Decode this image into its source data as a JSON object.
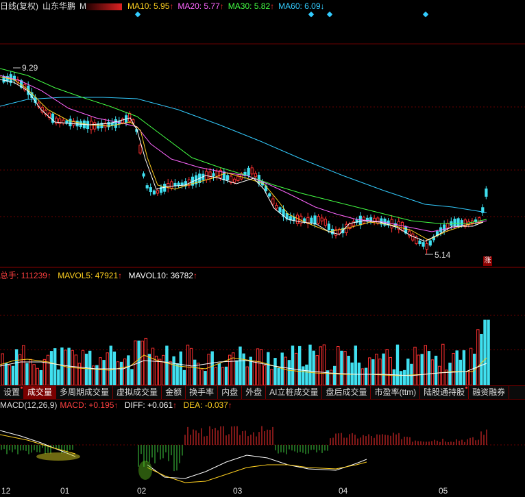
{
  "chart_header": {
    "period": "日线(复权)",
    "stock_name": "山东华鹏",
    "stock_suffix": "M",
    "ma10_label": "MA10: 5.95",
    "ma20_label": "MA20: 5.77",
    "ma30_label": "MA30: 5.82",
    "ma60_label": "MA60: 6.09"
  },
  "price_labels": {
    "high": "9.29",
    "low": "5.14"
  },
  "limit_badge": "涨",
  "volume_header": {
    "total": "总手: 111239",
    "mavol5": "MAVOL5: 47921",
    "mavol10": "MAVOL10: 36782"
  },
  "tabs": [
    {
      "label": "设置"
    },
    {
      "label": "成交量",
      "active": true
    },
    {
      "label": "多周期成交量"
    },
    {
      "label": "虚拟成交量"
    },
    {
      "label": "金额"
    },
    {
      "label": "换手率"
    },
    {
      "label": "内盘"
    },
    {
      "label": "外盘"
    },
    {
      "label": "AI立桩成交量"
    },
    {
      "label": "盘后成交量"
    },
    {
      "label": "市盈率(ttm)"
    },
    {
      "label": "陆股通持股"
    },
    {
      "label": "融资融券"
    }
  ],
  "macd_header": {
    "name": "MACD(12,26,9)",
    "macd": "MACD: +0.195",
    "diff": "DIFF: +0.061",
    "dea": "DEA: -0.037"
  },
  "x_axis": [
    "12",
    "01",
    "02",
    "03",
    "04",
    "05"
  ],
  "colors": {
    "up": "#ff3030",
    "down": "#40e0f0",
    "ma10": "#ffffff",
    "ma20": "#ff66ff",
    "ma30": "#44ff44",
    "ma60": "#3cf"
  }
}
